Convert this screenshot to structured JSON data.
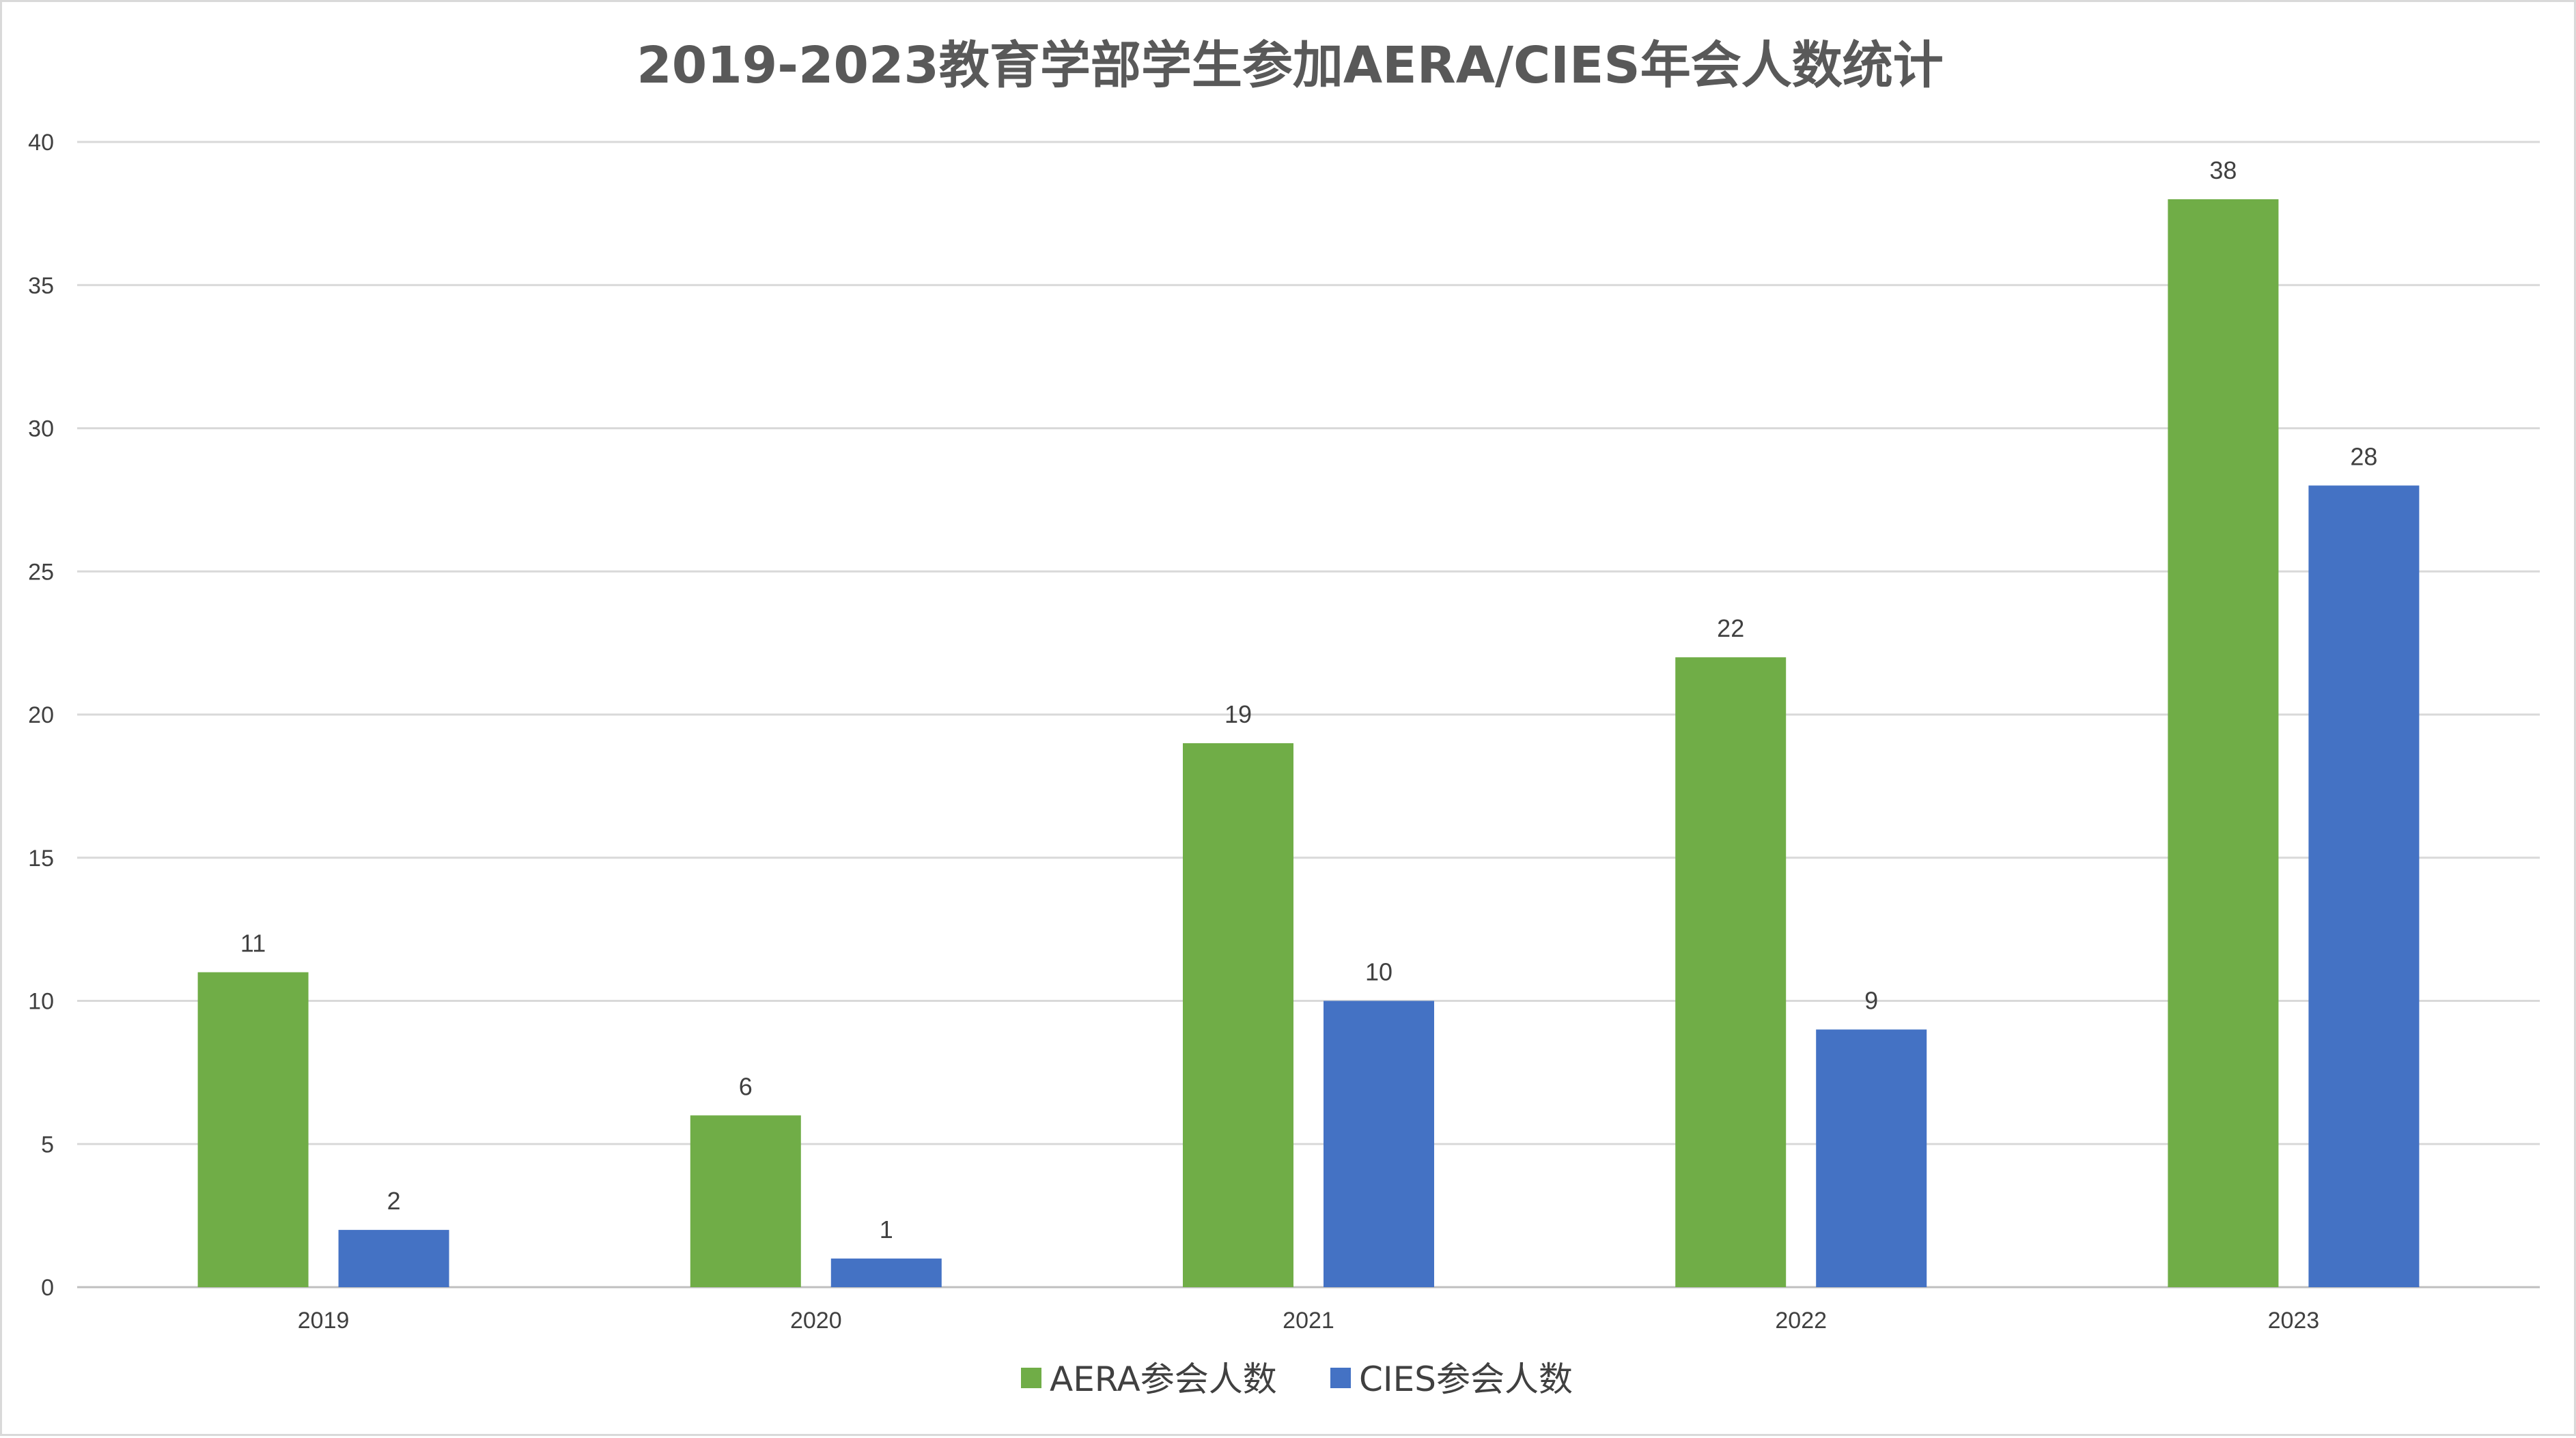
{
  "chart_data": {
    "type": "bar",
    "title": "2019-2023教育学部学生参加AERA/CIES年会人数统计",
    "categories": [
      "2019",
      "2020",
      "2021",
      "2022",
      "2023"
    ],
    "series": [
      {
        "name": "AERA参会人数",
        "color": "#70ad47",
        "values": [
          11,
          6,
          19,
          22,
          38
        ]
      },
      {
        "name": "CIES参会人数",
        "color": "#4472c4",
        "values": [
          2,
          1,
          10,
          9,
          28
        ]
      }
    ],
    "ylim": [
      0,
      40
    ],
    "yticks": [
      0,
      5,
      10,
      15,
      20,
      25,
      30,
      35,
      40
    ],
    "grid": true,
    "legend_position": "bottom",
    "data_labels": true
  }
}
